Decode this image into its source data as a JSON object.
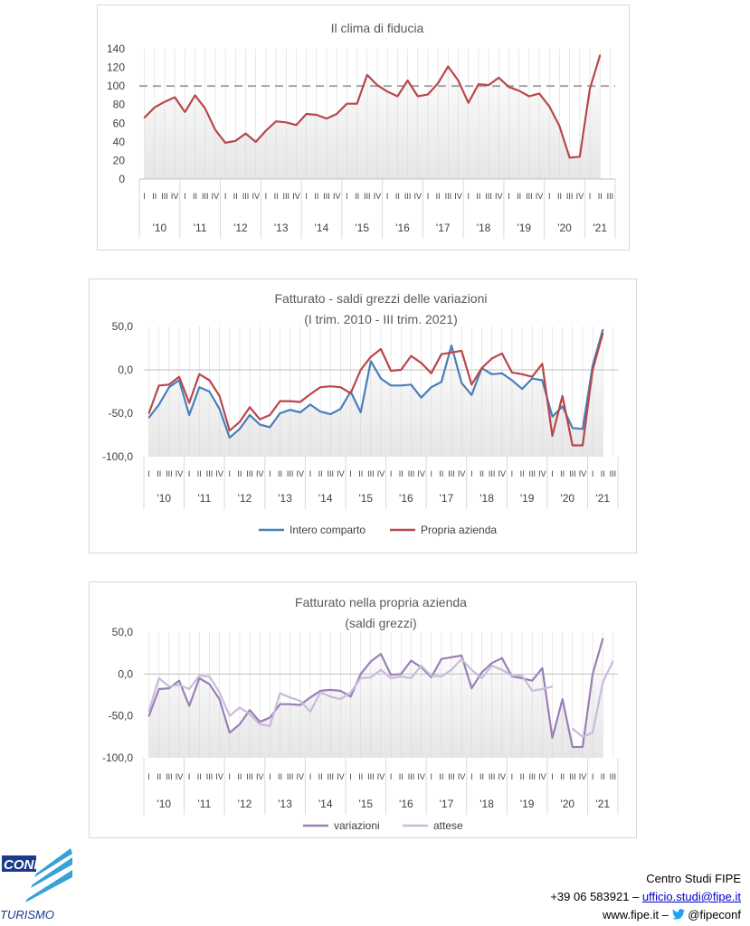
{
  "colors": {
    "clima": "#b8474a",
    "intero": "#4a7ebb",
    "propria": "#b8474a",
    "variazioni": "#9a7fb5",
    "attese": "#c7bcd9",
    "grid": "#bfbfbf",
    "area_top": "#ffffff",
    "area_bottom": "#e6e6e6"
  },
  "quarter_labels": [
    "I",
    "II",
    "III",
    "IV"
  ],
  "year_labels": [
    "'10",
    "'11",
    "'12",
    "'13",
    "'14",
    "'15",
    "'16",
    "'17",
    "'18",
    "'19",
    "'20",
    "'21"
  ],
  "chart_data": [
    {
      "type": "line",
      "title": "Il clima di fiducia",
      "ylim": [
        0,
        140
      ],
      "yticks": [
        "0",
        "20",
        "40",
        "60",
        "80",
        "100",
        "120",
        "140"
      ],
      "reference_line": 100,
      "x_start": "I trim. 2010",
      "series": [
        {
          "values": [
            66,
            77,
            83,
            88,
            72,
            90,
            76,
            53,
            39,
            41,
            49,
            40,
            52,
            62,
            61,
            58,
            70,
            69,
            65,
            70,
            81,
            81,
            112,
            101,
            94,
            89,
            106,
            89,
            91,
            103,
            121,
            106,
            82,
            102,
            101,
            109,
            99,
            95,
            89,
            92,
            78,
            57,
            23,
            24,
            97,
            133
          ]
        }
      ]
    },
    {
      "type": "line",
      "title": "Fatturato - saldi grezzi delle variazioni",
      "subtitle": "(I trim. 2010 - III trim. 2021)",
      "ylim": [
        -100,
        50
      ],
      "yticks": [
        "-100,0",
        "-50,0",
        "0,0",
        "50,0"
      ],
      "legend_position": "bottom",
      "series": [
        {
          "name": "Intero comparto",
          "values": [
            -55,
            -40,
            -20,
            -12,
            -52,
            -20,
            -25,
            -45,
            -78,
            -68,
            -52,
            -63,
            -66,
            -50,
            -46,
            -49,
            -40,
            -48,
            -51,
            -45,
            -25,
            -49,
            10,
            -10,
            -18,
            -18,
            -17,
            -32,
            -20,
            -14,
            28,
            -15,
            -29,
            2,
            -5,
            -4,
            -12,
            -22,
            -10,
            -12,
            -54,
            -42,
            -67,
            -68,
            5,
            46
          ]
        },
        {
          "name": "Propria azienda",
          "values": [
            -50,
            -18,
            -17,
            -8,
            -38,
            -5,
            -12,
            -30,
            -70,
            -60,
            -43,
            -57,
            -52,
            -36,
            -36,
            -37,
            -28,
            -20,
            -19,
            -20,
            -27,
            0,
            15,
            24,
            -1,
            0,
            16,
            8,
            -4,
            18,
            20,
            22,
            -17,
            2,
            13,
            19,
            -3,
            -5,
            -8,
            7,
            -76,
            -30,
            -87,
            -87,
            0,
            42
          ]
        }
      ]
    },
    {
      "type": "line",
      "title": "Fatturato nella propria azienda",
      "subtitle": "(saldi grezzi)",
      "ylim": [
        -100,
        50
      ],
      "yticks": [
        "-100,0",
        "-50,0",
        "0,0",
        "50,0"
      ],
      "legend_position": "bottom",
      "series": [
        {
          "name": "variazioni",
          "values": [
            -50,
            -18,
            -17,
            -8,
            -38,
            -5,
            -12,
            -30,
            -70,
            -60,
            -43,
            -57,
            -52,
            -36,
            -36,
            -37,
            -28,
            -20,
            -19,
            -20,
            -27,
            0,
            15,
            24,
            -1,
            0,
            16,
            8,
            -4,
            18,
            20,
            22,
            -17,
            2,
            13,
            19,
            -3,
            -5,
            -8,
            7,
            -76,
            -30,
            -87,
            -87,
            0,
            42
          ]
        },
        {
          "name": "attese",
          "values": [
            -44,
            -5,
            -15,
            -13,
            -18,
            -2,
            -3,
            -22,
            -50,
            -40,
            -48,
            -60,
            -62,
            -23,
            -28,
            -32,
            -45,
            -22,
            -27,
            -30,
            -22,
            -5,
            -4,
            5,
            -5,
            -3,
            -5,
            10,
            -2,
            -3,
            5,
            18,
            5,
            -5,
            10,
            5,
            -2,
            -2,
            -20,
            -18,
            -15,
            null,
            -65,
            -75,
            -70,
            -10,
            15
          ]
        }
      ]
    }
  ],
  "footer": {
    "org": "Centro Studi FIPE",
    "phone": "+39 06 583921 –",
    "email": "ufficio.studi@fipe.it",
    "web": "www.fipe.it –",
    "twitter": "@fipeconf"
  },
  "logo": {
    "line1": "CONF",
    "line2": "TURISMO"
  }
}
